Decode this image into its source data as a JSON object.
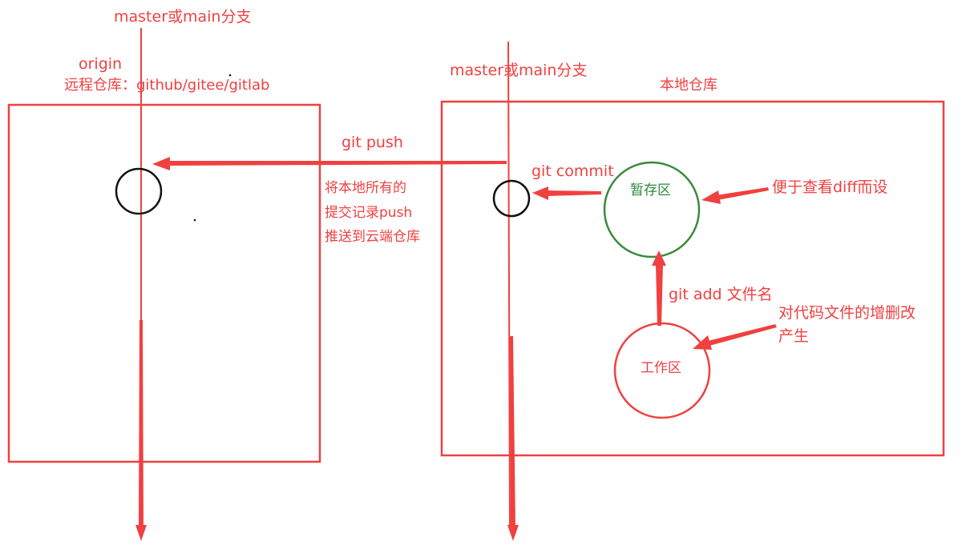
{
  "colors": {
    "red": "#f04040",
    "black": "#111111",
    "green": "#3a8a3a"
  },
  "remote": {
    "branch_label": "master或main分支",
    "name": "origin",
    "desc": "远程仓库：github/gitee/gitlab"
  },
  "local": {
    "branch_label": "master或main分支",
    "title": "本地仓库"
  },
  "push": {
    "label": "git push",
    "note_lines": [
      "将本地所有的",
      "提交记录push",
      "推送到云端仓库"
    ]
  },
  "commit": {
    "label": "git commit"
  },
  "staging": {
    "label": "暂存区",
    "note": "便于查看diff而设"
  },
  "add": {
    "label": "git add 文件名"
  },
  "workspace": {
    "label": "工作区",
    "note_lines": [
      "对代码文件的增删改",
      "产生"
    ]
  }
}
